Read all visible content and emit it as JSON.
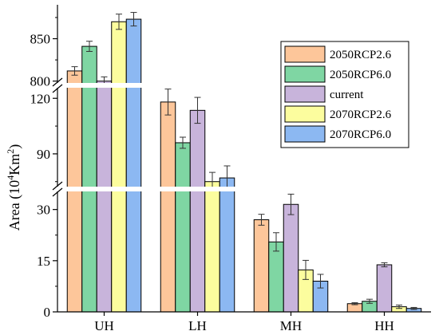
{
  "chart_data": {
    "type": "bar",
    "title": "",
    "xlabel": "",
    "ylabel": "Area (10",
    "ylabel_sup1": "4",
    "ylabel_mid": "Km",
    "ylabel_sup2": "2",
    "ylabel_end": ")",
    "categories": [
      "UH",
      "LH",
      "MH",
      "HH"
    ],
    "y_axis_break": true,
    "y_segments": [
      {
        "ylim": [
          0,
          36
        ],
        "ticks": [
          "0",
          "15",
          "30"
        ],
        "tick_values": [
          0,
          15,
          30
        ]
      },
      {
        "ylim": [
          71,
          127
        ],
        "ticks": [
          "90",
          "120"
        ],
        "tick_values": [
          90,
          120
        ]
      },
      {
        "ylim": [
          795,
          890
        ],
        "ticks": [
          "800",
          "850"
        ],
        "tick_values": [
          800,
          850
        ]
      }
    ],
    "series": [
      {
        "name": "2050RCP2.6",
        "color": "#FDC69A",
        "values": [
          812,
          118,
          27,
          2.4
        ],
        "errors": [
          5,
          7,
          1.6,
          0.3
        ]
      },
      {
        "name": "2050RCP6.0",
        "color": "#7FD6A3",
        "values": [
          841,
          96,
          20.5,
          3.1
        ],
        "errors": [
          6,
          3,
          2.7,
          0.6
        ]
      },
      {
        "name": "current",
        "color": "#C8B4DB",
        "values": [
          800,
          113.5,
          31.5,
          13.8
        ],
        "errors": [
          5,
          7,
          3,
          0.6
        ]
      },
      {
        "name": "2070RCP2.6",
        "color": "#FCFD9E",
        "values": [
          870,
          75,
          12.3,
          1.5
        ],
        "errors": [
          9,
          5,
          2.8,
          0.5
        ]
      },
      {
        "name": "2070RCP6.0",
        "color": "#8CB8F2",
        "values": [
          873,
          77,
          9,
          1.0
        ],
        "errors": [
          8,
          6.5,
          2,
          0.3
        ]
      }
    ],
    "legend_position": "top-right",
    "grid": false
  }
}
